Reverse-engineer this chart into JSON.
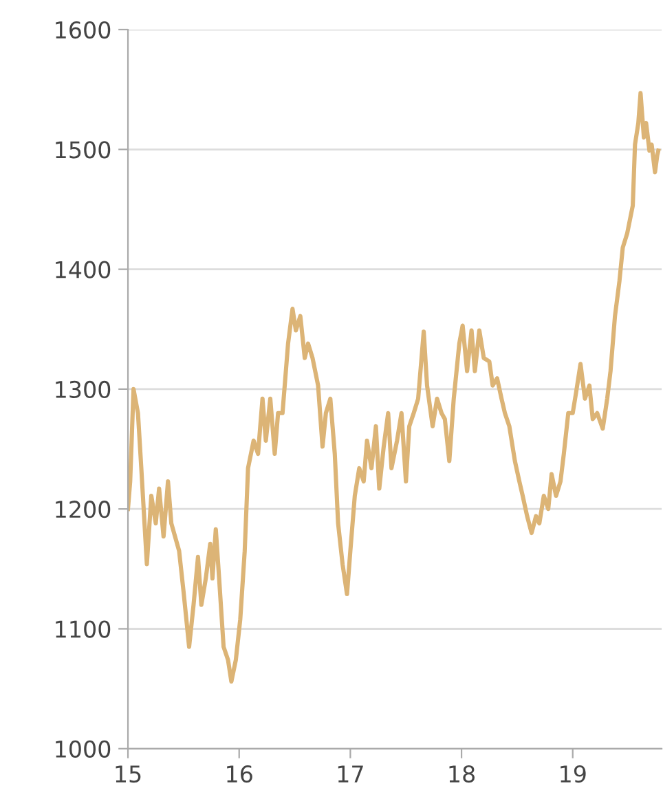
{
  "chart_data": {
    "type": "line",
    "x": [
      15.0,
      15.02,
      15.05,
      15.09,
      15.12,
      15.17,
      15.21,
      15.25,
      15.28,
      15.32,
      15.36,
      15.39,
      15.46,
      15.5,
      15.55,
      15.59,
      15.63,
      15.66,
      15.7,
      15.74,
      15.76,
      15.79,
      15.82,
      15.86,
      15.9,
      15.93,
      15.97,
      16.01,
      16.05,
      16.08,
      16.13,
      16.17,
      16.21,
      16.24,
      16.28,
      16.32,
      16.35,
      16.39,
      16.44,
      16.48,
      16.51,
      16.55,
      16.59,
      16.62,
      16.66,
      16.71,
      16.75,
      16.78,
      16.82,
      16.86,
      16.89,
      16.93,
      16.97,
      17.0,
      17.04,
      17.08,
      17.12,
      17.15,
      17.19,
      17.23,
      17.26,
      17.3,
      17.34,
      17.37,
      17.42,
      17.46,
      17.5,
      17.53,
      17.57,
      17.61,
      17.66,
      17.69,
      17.74,
      17.78,
      17.82,
      17.85,
      17.89,
      17.93,
      17.98,
      18.01,
      18.05,
      18.09,
      18.12,
      18.16,
      18.2,
      18.25,
      18.28,
      18.32,
      18.36,
      18.39,
      18.43,
      18.48,
      18.52,
      18.55,
      18.59,
      18.63,
      18.67,
      18.7,
      18.74,
      18.78,
      18.81,
      18.85,
      18.89,
      18.92,
      18.96,
      19.0,
      19.03,
      19.07,
      19.11,
      19.15,
      19.18,
      19.22,
      19.27,
      19.31,
      19.34,
      19.38,
      19.42,
      19.45,
      19.49,
      19.54,
      19.56,
      19.59,
      19.61,
      19.64,
      19.66,
      19.69,
      19.71,
      19.74,
      19.76,
      19.77
    ],
    "series": [
      {
        "color": "#dcb476",
        "values": [
          1200,
          1223,
          1300,
          1280,
          1234,
          1154,
          1211,
          1188,
          1217,
          1177,
          1223,
          1188,
          1165,
          1131,
          1085,
          1120,
          1160,
          1120,
          1142,
          1171,
          1142,
          1183,
          1142,
          1085,
          1074,
          1056,
          1074,
          1108,
          1165,
          1234,
          1257,
          1246,
          1292,
          1257,
          1292,
          1246,
          1280,
          1280,
          1338,
          1367,
          1349,
          1361,
          1326,
          1338,
          1326,
          1303,
          1252,
          1280,
          1292,
          1246,
          1188,
          1154,
          1129,
          1165,
          1211,
          1234,
          1223,
          1257,
          1234,
          1269,
          1217,
          1252,
          1280,
          1234,
          1257,
          1280,
          1223,
          1269,
          1280,
          1292,
          1348,
          1303,
          1269,
          1292,
          1280,
          1275,
          1240,
          1292,
          1338,
          1353,
          1315,
          1349,
          1315,
          1349,
          1326,
          1323,
          1303,
          1309,
          1292,
          1280,
          1269,
          1240,
          1223,
          1211,
          1194,
          1180,
          1194,
          1188,
          1211,
          1200,
          1229,
          1211,
          1223,
          1246,
          1280,
          1280,
          1297,
          1321,
          1292,
          1303,
          1275,
          1280,
          1267,
          1292,
          1315,
          1361,
          1390,
          1418,
          1430,
          1453,
          1504,
          1522,
          1547,
          1510,
          1522,
          1499,
          1504,
          1481,
          1495,
          1499
        ]
      }
    ],
    "xlim": [
      15,
      19.8
    ],
    "ylim": [
      1000,
      1600
    ],
    "xticks": [
      {
        "value": 15,
        "label": "15"
      },
      {
        "value": 16,
        "label": "16"
      },
      {
        "value": 17,
        "label": "17"
      },
      {
        "value": 18,
        "label": "18"
      },
      {
        "value": 19,
        "label": "19"
      }
    ],
    "yticks": [
      1000,
      1100,
      1200,
      1300,
      1400,
      1500,
      1600
    ],
    "grid": "y",
    "marker": "none",
    "line_style": "solid"
  }
}
